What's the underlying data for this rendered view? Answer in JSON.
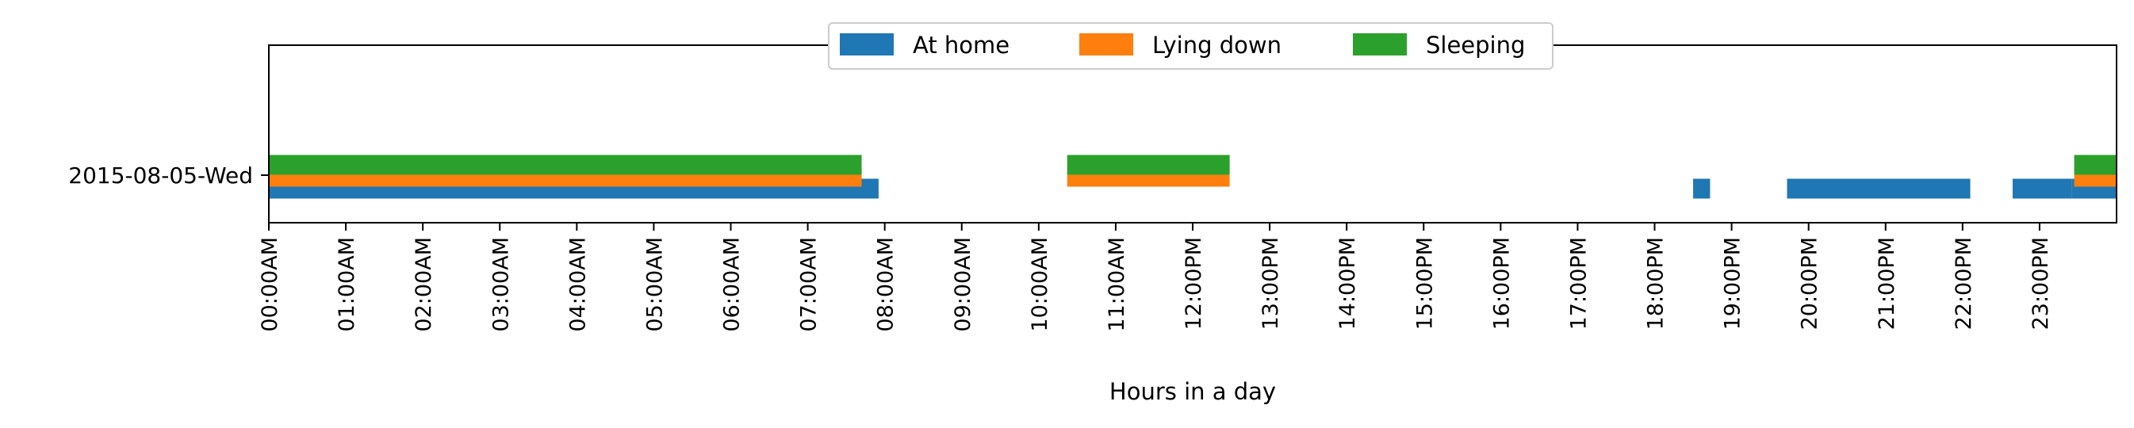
{
  "chart_data": {
    "type": "bar",
    "orientation": "horizontal-timeline",
    "title": "",
    "xlabel": "Hours in a day",
    "ylabel": "",
    "xlim": [
      0,
      24
    ],
    "categories": [
      "2015-08-05-Wed"
    ],
    "x_ticks": [
      "00:00AM",
      "01:00AM",
      "02:00AM",
      "03:00AM",
      "04:00AM",
      "05:00AM",
      "06:00AM",
      "07:00AM",
      "08:00AM",
      "09:00AM",
      "10:00AM",
      "11:00AM",
      "12:00PM",
      "13:00PM",
      "14:00PM",
      "15:00PM",
      "16:00PM",
      "17:00PM",
      "18:00PM",
      "19:00PM",
      "20:00PM",
      "21:00PM",
      "22:00PM",
      "23:00PM"
    ],
    "legend_position": "top-center",
    "series": [
      {
        "name": "At home",
        "color": "#1f77b4",
        "intervals_hours": [
          [
            0.0,
            7.92
          ],
          [
            18.5,
            18.72
          ],
          [
            19.72,
            22.1
          ],
          [
            22.65,
            23.42
          ],
          [
            23.42,
            24.0
          ]
        ]
      },
      {
        "name": "Lying down",
        "color": "#ff7f0e",
        "intervals_hours": [
          [
            0.0,
            7.7
          ],
          [
            10.37,
            12.48
          ],
          [
            23.45,
            24.0
          ]
        ]
      },
      {
        "name": "Sleeping",
        "color": "#2ca02c",
        "intervals_hours": [
          [
            0.0,
            7.7
          ],
          [
            10.37,
            12.48
          ],
          [
            23.45,
            24.0
          ]
        ]
      }
    ]
  }
}
